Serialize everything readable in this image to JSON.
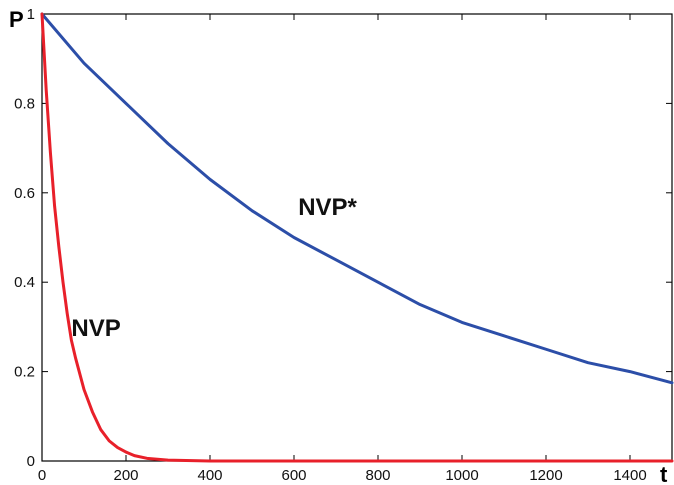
{
  "chart_data": {
    "type": "line",
    "xlabel": "t",
    "ylabel": "P",
    "xlim": [
      0,
      1500
    ],
    "ylim": [
      0,
      1
    ],
    "x_ticks": [
      0,
      200,
      400,
      600,
      800,
      1000,
      1200,
      1400
    ],
    "y_ticks": [
      0,
      0.2,
      0.4,
      0.6,
      0.8,
      1
    ],
    "y_tick_labels": [
      "0",
      "0.2",
      "0.4",
      "0.6",
      "0.8",
      "1"
    ],
    "grid": false,
    "series": [
      {
        "name": "NVP*",
        "color": "#2c4ea8",
        "x": [
          0,
          100,
          200,
          300,
          400,
          500,
          600,
          700,
          800,
          900,
          1000,
          1100,
          1200,
          1300,
          1400,
          1500
        ],
        "y": [
          1.0,
          0.89,
          0.8,
          0.71,
          0.63,
          0.56,
          0.5,
          0.45,
          0.4,
          0.35,
          0.31,
          0.28,
          0.25,
          0.22,
          0.2,
          0.175
        ]
      },
      {
        "name": "NVP",
        "color": "#e8202a",
        "x": [
          0,
          10,
          20,
          30,
          40,
          50,
          60,
          70,
          80,
          100,
          120,
          140,
          160,
          180,
          200,
          220,
          250,
          300,
          400,
          600,
          800,
          1000,
          1200,
          1500
        ],
        "y": [
          1.0,
          0.83,
          0.69,
          0.57,
          0.48,
          0.4,
          0.33,
          0.27,
          0.23,
          0.16,
          0.11,
          0.07,
          0.045,
          0.03,
          0.02,
          0.012,
          0.006,
          0.002,
          0.0,
          0.0,
          0.0,
          0.0,
          0.0,
          0.0
        ]
      }
    ],
    "annotations": [
      {
        "text": "NVP*",
        "x": 610,
        "y": 0.55
      },
      {
        "text": "NVP",
        "x": 70,
        "y": 0.28
      }
    ]
  }
}
